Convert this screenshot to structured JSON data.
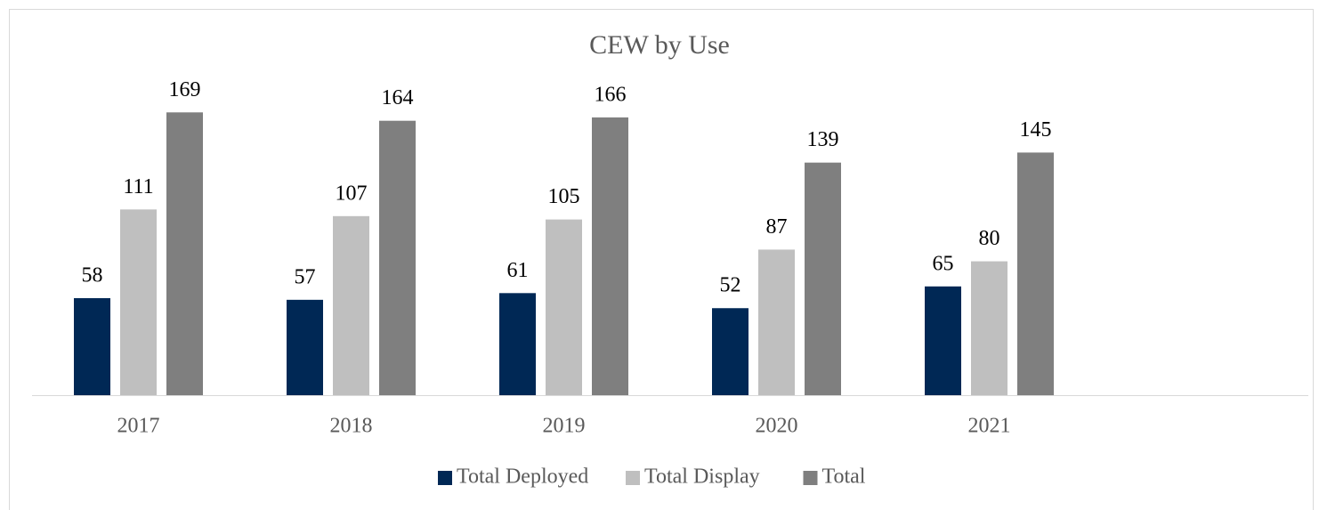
{
  "chart_data": {
    "type": "bar",
    "title": "CEW by Use",
    "categories": [
      "2017",
      "2018",
      "2019",
      "2020",
      "2021",
      null
    ],
    "series": [
      {
        "name": "Total Deployed",
        "color": "#002855",
        "values": [
          58,
          57,
          61,
          52,
          65,
          null
        ]
      },
      {
        "name": "Total Display",
        "color": "#bfbfbf",
        "values": [
          111,
          107,
          105,
          87,
          80,
          null
        ]
      },
      {
        "name": "Total",
        "color": "#7f7f7f",
        "values": [
          169,
          164,
          166,
          139,
          145,
          null
        ]
      }
    ],
    "ylim": [
      0,
      200
    ],
    "legend": "bottom"
  }
}
